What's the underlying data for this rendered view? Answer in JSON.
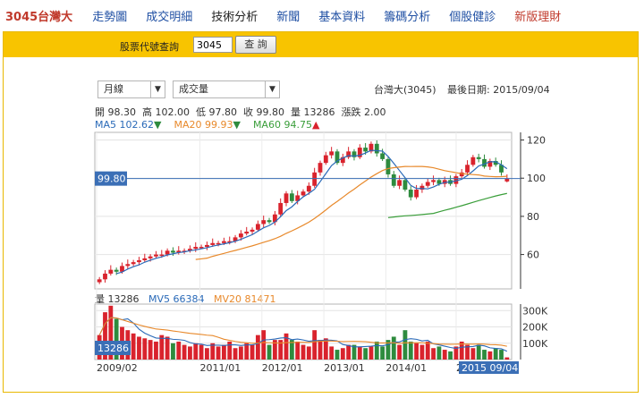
{
  "nav": {
    "stock": "3045台灣大",
    "items": [
      "走勢圖",
      "成交明細",
      "技術分析",
      "新聞",
      "基本資料",
      "籌碼分析",
      "個股健診"
    ],
    "new_item": "新版理財"
  },
  "query": {
    "label": "股票代號查詢",
    "value": "3045",
    "button": "查 詢"
  },
  "controls": {
    "period": "月線",
    "indicator": "成交量",
    "arrow": "▼"
  },
  "header": {
    "title": "台灣大(3045)",
    "last_date": "最後日期: 2015/09/04"
  },
  "ohlc": {
    "open": "開 98.30",
    "high": "高 102.00",
    "low": "低 97.80",
    "close": "收 99.80",
    "volume": "量 13286",
    "change": "漲跌 2.00"
  },
  "ma": {
    "ma5": "MA5 102.62",
    "ma20": "MA20 99.93",
    "ma60": "MA60 94.75"
  },
  "vol_legend": {
    "vol": "量 13286",
    "mv5": "MV5 66384",
    "mv20": "MV20 81471"
  },
  "price_label": "99.80",
  "volume_label": "13286",
  "date_label": "2015 09/04",
  "colors": {
    "up": "#d9232d",
    "down": "#2e8b3e",
    "ma5": "#2a6ab8",
    "ma20": "#e8892b",
    "ma60": "#3a9e3a",
    "price_label_bg": "#3b6fb6",
    "query_bar": "#f8c400"
  },
  "chart_data": [
    {
      "type": "candlestick",
      "title": "台灣大(3045)",
      "y_ticks": [
        60,
        80,
        100,
        120
      ],
      "ylim": [
        42,
        124
      ],
      "x_ticks": [
        "2009/02",
        "2011/01",
        "2012/01",
        "2013/01",
        "2014/01",
        "2015"
      ],
      "last": {
        "open": 98.3,
        "high": 102.0,
        "low": 97.8,
        "close": 99.8
      },
      "closes": [
        47,
        50,
        52,
        51,
        54,
        55,
        56,
        57,
        58,
        59,
        60,
        60,
        62,
        61,
        62,
        62,
        63,
        64,
        64,
        65,
        66,
        66,
        67,
        67,
        69,
        71,
        72,
        73,
        76,
        78,
        77,
        81,
        87,
        92,
        88,
        91,
        93,
        96,
        103,
        108,
        112,
        114,
        108,
        111,
        114,
        111,
        116,
        114,
        118,
        113,
        110,
        102,
        96,
        99,
        94,
        90,
        94,
        96,
        98,
        99,
        97,
        99,
        97,
        101,
        103,
        107,
        111,
        110,
        106,
        109,
        107,
        103,
        99.8
      ],
      "ma20_from_index": 17,
      "ma60_from_index": 51
    },
    {
      "type": "bar",
      "title": "成交量",
      "y_ticks": [
        "100K",
        "200K",
        "300K"
      ],
      "ylim": [
        0,
        340000
      ],
      "series": [
        {
          "name": "量",
          "last": 13286
        },
        {
          "name": "MV5",
          "last": 66384
        },
        {
          "name": "MV20",
          "last": 81471
        }
      ],
      "volumes": [
        150000,
        290000,
        330000,
        250000,
        200000,
        180000,
        160000,
        140000,
        130000,
        120000,
        110000,
        150000,
        140000,
        100000,
        110000,
        90000,
        80000,
        100000,
        90000,
        70000,
        100000,
        80000,
        90000,
        110000,
        70000,
        80000,
        100000,
        90000,
        150000,
        180000,
        90000,
        120000,
        120000,
        160000,
        120000,
        110000,
        90000,
        80000,
        180000,
        120000,
        130000,
        80000,
        60000,
        70000,
        90000,
        90000,
        80000,
        70000,
        80000,
        110000,
        80000,
        120000,
        140000,
        90000,
        180000,
        110000,
        100000,
        90000,
        110000,
        70000,
        80000,
        60000,
        50000,
        80000,
        110000,
        90000,
        70000,
        90000,
        60000,
        50000,
        70000,
        60000,
        13286
      ]
    }
  ]
}
